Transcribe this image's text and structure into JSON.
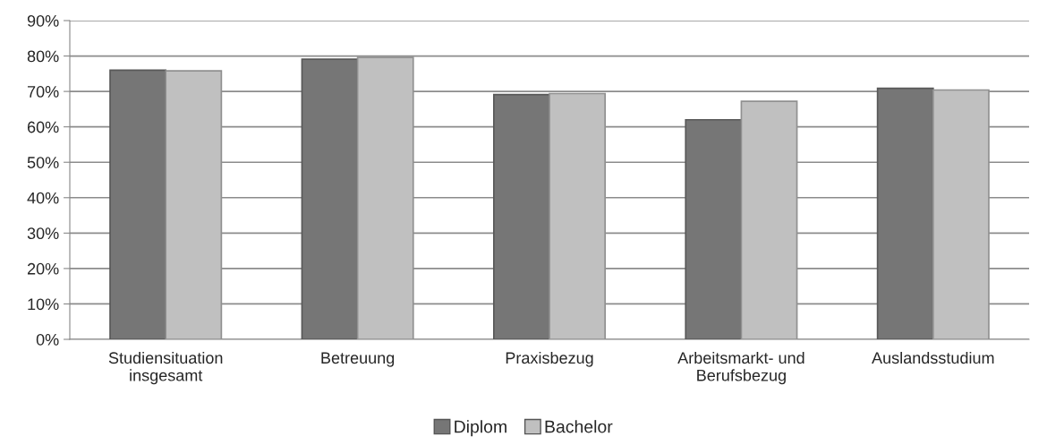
{
  "chart_data": {
    "type": "bar",
    "categories": [
      "Studiensituation\ninsgesamt",
      "Betreuung",
      "Praxisbezug",
      "Arbeitsmarkt- und\nBerufsbezug",
      "Auslandsstudium"
    ],
    "series": [
      {
        "name": "Diplom",
        "color": "#767676",
        "values": [
          76.0,
          79.1,
          69.1,
          62.0,
          70.9
        ]
      },
      {
        "name": "Bachelor",
        "color": "#c0c0c0",
        "values": [
          75.8,
          79.6,
          69.4,
          67.2,
          70.4
        ]
      }
    ],
    "ylim": [
      0,
      90
    ],
    "yticks": [
      {
        "value": 0,
        "label": "0%"
      },
      {
        "value": 10,
        "label": "10%"
      },
      {
        "value": 20,
        "label": "20%"
      },
      {
        "value": 30,
        "label": "30%"
      },
      {
        "value": 40,
        "label": "40%"
      },
      {
        "value": 50,
        "label": "50%"
      },
      {
        "value": 60,
        "label": "60%"
      },
      {
        "value": 70,
        "label": "70%"
      },
      {
        "value": 80,
        "label": "80%"
      },
      {
        "value": 90,
        "label": "90%"
      }
    ],
    "grid": "y",
    "legend": "bottom"
  }
}
